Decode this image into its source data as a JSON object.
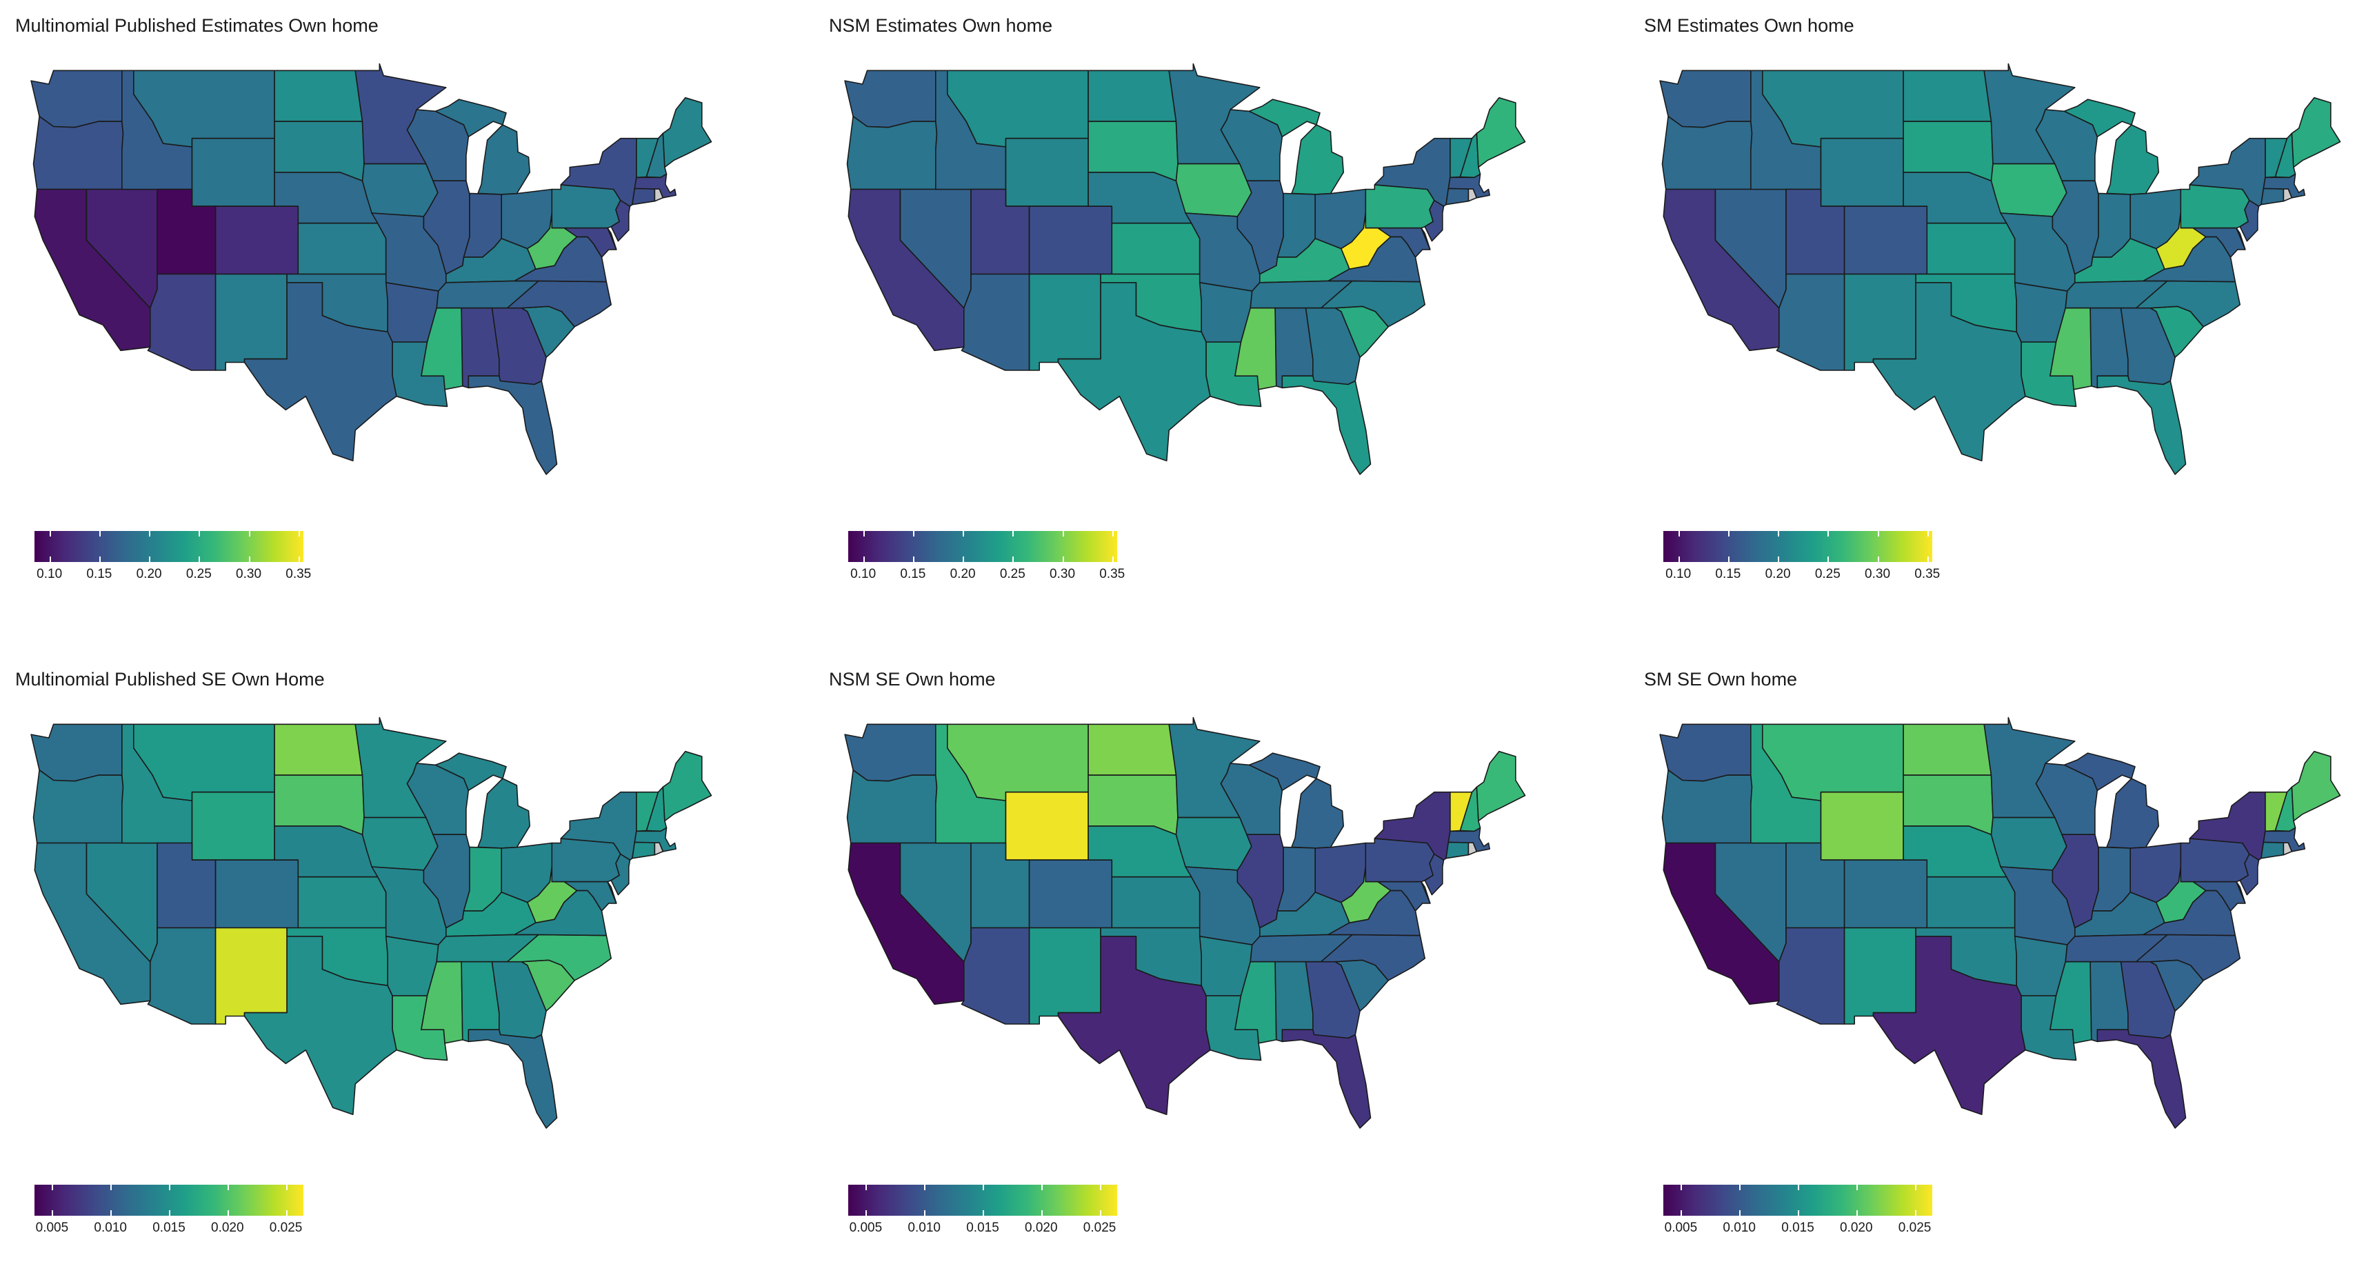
{
  "figure": {
    "panels": [
      {
        "title": "Multinomial Published Estimates Own home",
        "legend": {
          "ticks": [
            "0.10",
            "0.15",
            "0.20",
            "0.25",
            "0.30",
            "0.35"
          ],
          "min": 0.085,
          "max": 0.355
        },
        "states": {
          "WA": 0.16,
          "OR": 0.155,
          "CA": 0.1,
          "NV": 0.11,
          "ID": 0.165,
          "MT": 0.19,
          "WY": 0.19,
          "UT": 0.09,
          "CO": 0.12,
          "AZ": 0.14,
          "NM": 0.2,
          "ND": 0.22,
          "SD": 0.21,
          "NE": 0.18,
          "KS": 0.2,
          "OK": 0.19,
          "TX": 0.17,
          "MN": 0.15,
          "IA": 0.19,
          "MO": 0.17,
          "AR": 0.16,
          "LA": 0.2,
          "WI": 0.17,
          "IL": 0.16,
          "MI": 0.19,
          "IN": 0.16,
          "OH": 0.18,
          "KY": 0.2,
          "TN": 0.18,
          "MS": 0.26,
          "AL": 0.14,
          "GA": 0.14,
          "FL": 0.17,
          "SC": 0.2,
          "NC": 0.16,
          "VA": 0.16,
          "WV": 0.28,
          "PA": 0.2,
          "NY": 0.15,
          "VT": 0.21,
          "NH": 0.2,
          "ME": 0.21,
          "MA": 0.14,
          "CT": 0.15,
          "NJ": 0.14,
          "DE": 0.16,
          "MD": 0.14
        }
      },
      {
        "title": "NSM Estimates Own home",
        "legend": {
          "ticks": [
            "0.10",
            "0.15",
            "0.20",
            "0.25",
            "0.30",
            "0.35"
          ],
          "min": 0.085,
          "max": 0.355
        },
        "states": {
          "WA": 0.17,
          "OR": 0.19,
          "CA": 0.13,
          "NV": 0.17,
          "ID": 0.18,
          "MT": 0.22,
          "WY": 0.21,
          "UT": 0.14,
          "CO": 0.15,
          "AZ": 0.17,
          "NM": 0.22,
          "ND": 0.22,
          "SD": 0.25,
          "NE": 0.2,
          "KS": 0.24,
          "OK": 0.24,
          "TX": 0.22,
          "MN": 0.19,
          "IA": 0.27,
          "MO": 0.18,
          "AR": 0.19,
          "LA": 0.24,
          "WI": 0.19,
          "IL": 0.17,
          "MI": 0.24,
          "IN": 0.19,
          "OH": 0.18,
          "KY": 0.25,
          "TN": 0.19,
          "MS": 0.29,
          "AL": 0.18,
          "GA": 0.19,
          "FL": 0.23,
          "SC": 0.25,
          "NC": 0.2,
          "VA": 0.17,
          "WV": 0.36,
          "PA": 0.25,
          "NY": 0.17,
          "VT": 0.22,
          "NH": 0.23,
          "ME": 0.26,
          "MA": 0.16,
          "CT": 0.17,
          "NJ": 0.15,
          "DE": 0.17,
          "MD": 0.16
        }
      },
      {
        "title": "SM Estimates Own home",
        "legend": {
          "ticks": [
            "0.10",
            "0.15",
            "0.20",
            "0.25",
            "0.30",
            "0.35"
          ],
          "min": 0.085,
          "max": 0.355
        },
        "states": {
          "WA": 0.17,
          "OR": 0.18,
          "CA": 0.13,
          "NV": 0.17,
          "ID": 0.18,
          "MT": 0.21,
          "WY": 0.2,
          "UT": 0.15,
          "CO": 0.16,
          "AZ": 0.18,
          "NM": 0.21,
          "ND": 0.22,
          "SD": 0.24,
          "NE": 0.2,
          "KS": 0.23,
          "OK": 0.23,
          "TX": 0.21,
          "MN": 0.19,
          "IA": 0.26,
          "MO": 0.19,
          "AR": 0.19,
          "LA": 0.24,
          "WI": 0.19,
          "IL": 0.18,
          "MI": 0.23,
          "IN": 0.19,
          "OH": 0.19,
          "KY": 0.24,
          "TN": 0.19,
          "MS": 0.28,
          "AL": 0.18,
          "GA": 0.18,
          "FL": 0.22,
          "SC": 0.24,
          "NC": 0.2,
          "VA": 0.18,
          "WV": 0.34,
          "PA": 0.24,
          "NY": 0.18,
          "VT": 0.22,
          "NH": 0.23,
          "ME": 0.25,
          "MA": 0.17,
          "CT": 0.18,
          "NJ": 0.16,
          "DE": 0.18,
          "MD": 0.17
        }
      },
      {
        "title": "Multinomial Published SE Own Home",
        "legend": {
          "ticks": [
            "0.005",
            "0.010",
            "0.015",
            "0.020",
            "0.025"
          ],
          "min": 0.0035,
          "max": 0.0265
        },
        "states": {
          "WA": 0.012,
          "OR": 0.013,
          "CA": 0.013,
          "NV": 0.014,
          "ID": 0.015,
          "MT": 0.016,
          "WY": 0.017,
          "UT": 0.01,
          "CO": 0.012,
          "AZ": 0.013,
          "NM": 0.025,
          "ND": 0.022,
          "SD": 0.02,
          "NE": 0.014,
          "KS": 0.015,
          "OK": 0.016,
          "TX": 0.015,
          "MN": 0.015,
          "IA": 0.015,
          "MO": 0.014,
          "AR": 0.015,
          "LA": 0.019,
          "WI": 0.013,
          "IL": 0.012,
          "MI": 0.014,
          "IN": 0.017,
          "OH": 0.014,
          "KY": 0.016,
          "TN": 0.015,
          "MS": 0.02,
          "AL": 0.016,
          "GA": 0.014,
          "FL": 0.012,
          "SC": 0.02,
          "NC": 0.019,
          "VA": 0.014,
          "WV": 0.021,
          "PA": 0.013,
          "NY": 0.013,
          "VT": 0.017,
          "NH": 0.016,
          "ME": 0.017,
          "MA": 0.014,
          "CT": 0.015,
          "NJ": 0.013,
          "DE": 0.018,
          "MD": 0.013
        }
      },
      {
        "title": "NSM SE Own home",
        "legend": {
          "ticks": [
            "0.005",
            "0.010",
            "0.015",
            "0.020",
            "0.025"
          ],
          "min": 0.0035,
          "max": 0.0265
        },
        "states": {
          "WA": 0.011,
          "OR": 0.013,
          "CA": 0.004,
          "NV": 0.013,
          "ID": 0.018,
          "MT": 0.021,
          "WY": 0.026,
          "UT": 0.013,
          "CO": 0.011,
          "AZ": 0.009,
          "NM": 0.016,
          "ND": 0.022,
          "SD": 0.021,
          "NE": 0.016,
          "KS": 0.014,
          "OK": 0.014,
          "TX": 0.006,
          "MN": 0.013,
          "IA": 0.015,
          "MO": 0.012,
          "AR": 0.014,
          "LA": 0.015,
          "WI": 0.012,
          "IL": 0.008,
          "MI": 0.011,
          "IN": 0.011,
          "OH": 0.009,
          "KY": 0.013,
          "TN": 0.011,
          "MS": 0.017,
          "AL": 0.013,
          "GA": 0.009,
          "FL": 0.007,
          "SC": 0.012,
          "NC": 0.01,
          "VA": 0.01,
          "WV": 0.021,
          "PA": 0.009,
          "NY": 0.007,
          "VT": 0.026,
          "NH": 0.018,
          "ME": 0.019,
          "MA": 0.01,
          "CT": 0.014,
          "NJ": 0.009,
          "DE": 0.021,
          "MD": 0.01
        }
      },
      {
        "title": "SM SE Own home",
        "legend": {
          "ticks": [
            "0.005",
            "0.010",
            "0.015",
            "0.020",
            "0.025"
          ],
          "min": 0.0035,
          "max": 0.0265
        },
        "states": {
          "WA": 0.01,
          "OR": 0.012,
          "CA": 0.004,
          "NV": 0.012,
          "ID": 0.017,
          "MT": 0.019,
          "WY": 0.022,
          "UT": 0.012,
          "CO": 0.012,
          "AZ": 0.009,
          "NM": 0.016,
          "ND": 0.021,
          "SD": 0.02,
          "NE": 0.016,
          "KS": 0.014,
          "OK": 0.014,
          "TX": 0.006,
          "MN": 0.012,
          "IA": 0.014,
          "MO": 0.011,
          "AR": 0.013,
          "LA": 0.014,
          "WI": 0.011,
          "IL": 0.008,
          "MI": 0.01,
          "IN": 0.011,
          "OH": 0.009,
          "KY": 0.012,
          "TN": 0.01,
          "MS": 0.016,
          "AL": 0.012,
          "GA": 0.009,
          "FL": 0.007,
          "SC": 0.011,
          "NC": 0.01,
          "VA": 0.01,
          "WV": 0.019,
          "PA": 0.009,
          "NY": 0.007,
          "VT": 0.022,
          "NH": 0.018,
          "ME": 0.02,
          "MA": 0.01,
          "CT": 0.013,
          "NJ": 0.009,
          "DE": 0.018,
          "MD": 0.01
        }
      }
    ],
    "colors": {
      "viridis": [
        "#440154",
        "#482878",
        "#3e4989",
        "#31688e",
        "#26828e",
        "#1f9e89",
        "#35b779",
        "#6ece58",
        "#b5de2b",
        "#fde725"
      ],
      "border": "#1a1a1a",
      "background": "#ffffff"
    }
  }
}
